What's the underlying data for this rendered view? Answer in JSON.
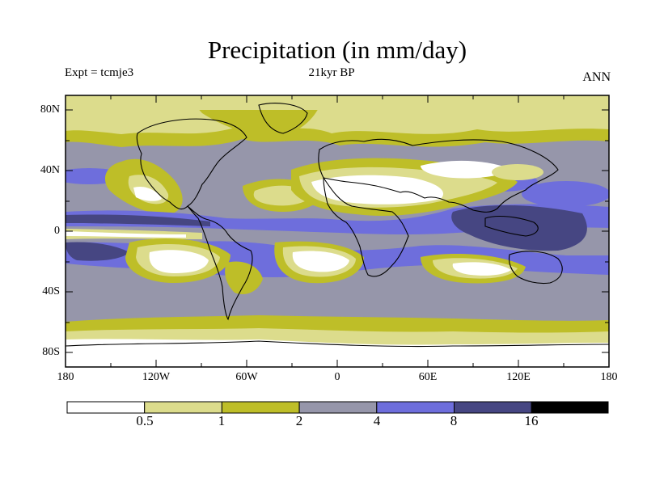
{
  "header": {
    "title": "Precipitation (in mm/day)",
    "experiment": "Expt = tcmje3",
    "period": "21kyr BP",
    "season": "ANN"
  },
  "map": {
    "lat_labels": [
      "80N",
      "40N",
      "0",
      "40S",
      "80S"
    ],
    "lon_labels": [
      "180",
      "120W",
      "60W",
      "0",
      "60E",
      "120E",
      "180"
    ]
  },
  "colorbar": {
    "labels": [
      "0.5",
      "1",
      "2",
      "4",
      "8",
      "16"
    ],
    "colors": [
      "#ffffff",
      "#dcdc8c",
      "#bebe28",
      "#9696aa",
      "#6e6edc",
      "#464682",
      "#000000"
    ]
  }
}
